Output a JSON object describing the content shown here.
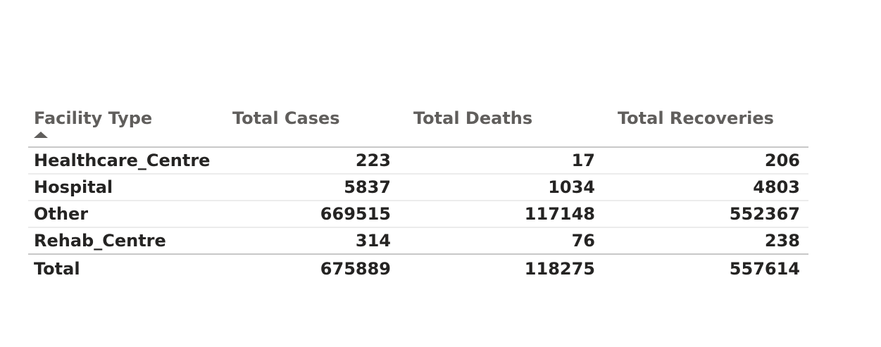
{
  "chart_data": {
    "type": "table",
    "columns": [
      "Facility Type",
      "Total Cases",
      "Total Deaths",
      "Total Recoveries"
    ],
    "sort": {
      "column": "Facility Type",
      "direction": "ascending"
    },
    "rows": [
      {
        "facility_type": "Healthcare_Centre",
        "total_cases": "223",
        "total_deaths": "17",
        "total_recoveries": "206"
      },
      {
        "facility_type": "Hospital",
        "total_cases": "5837",
        "total_deaths": "1034",
        "total_recoveries": "4803"
      },
      {
        "facility_type": "Other",
        "total_cases": "669515",
        "total_deaths": "117148",
        "total_recoveries": "552367"
      },
      {
        "facility_type": "Rehab_Centre",
        "total_cases": "314",
        "total_deaths": "76",
        "total_recoveries": "238"
      }
    ],
    "total": {
      "label": "Total",
      "total_cases": "675889",
      "total_deaths": "118275",
      "total_recoveries": "557614"
    }
  },
  "colors": {
    "header_text": "#605e5c",
    "body_text": "#252423",
    "header_rule": "#c8c8c8",
    "row_rule": "#ececec"
  },
  "icons": {
    "sort": "sort-ascending-icon"
  }
}
